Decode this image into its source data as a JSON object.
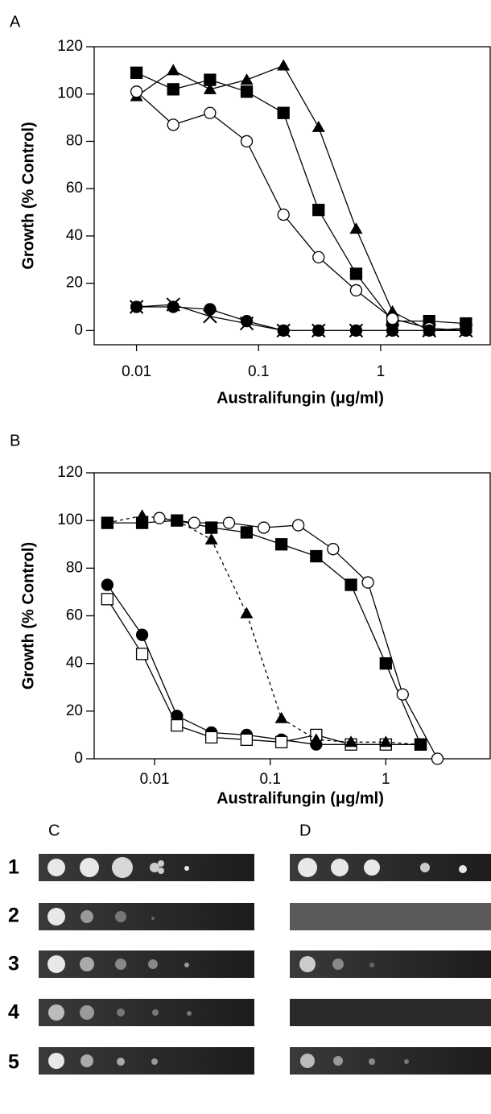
{
  "chart_data": [
    {
      "type": "line",
      "panel": "A",
      "x_label": "Australifungin (μg/ml)",
      "y_label": "Growth (% Control)",
      "x_scale": "log",
      "xlim": [
        0.0045,
        7.9
      ],
      "xticks": [
        0.01,
        0.1,
        1
      ],
      "ylim": [
        -6,
        120
      ],
      "yticks": [
        0,
        20,
        40,
        60,
        80,
        100,
        120
      ],
      "x": [
        0.01,
        0.02,
        0.04,
        0.08,
        0.16,
        0.31,
        0.63,
        1.25,
        2.5,
        5
      ],
      "series": [
        {
          "color": "#000000",
          "marker": "square",
          "dash": false,
          "values": [
            109,
            102,
            106,
            101,
            92,
            51,
            24,
            4,
            4,
            3
          ]
        },
        {
          "color": "#000000",
          "marker": "triangle",
          "dash": false,
          "values": [
            99,
            110,
            102,
            106,
            112,
            86,
            43,
            8,
            0,
            1
          ]
        },
        {
          "color": "#000000",
          "marker": "circle-open",
          "dash": false,
          "values": [
            101,
            87,
            92,
            80,
            49,
            31,
            17,
            5,
            1,
            0
          ]
        },
        {
          "color": "#000000",
          "marker": "circle",
          "dash": false,
          "values": [
            10,
            10,
            9,
            4,
            0,
            0,
            0,
            0,
            0,
            0
          ]
        },
        {
          "color": "#000000",
          "marker": "x",
          "dash": false,
          "values": [
            10,
            11,
            6,
            3,
            0,
            0,
            0,
            0,
            0,
            0
          ]
        }
      ]
    },
    {
      "type": "line",
      "panel": "B",
      "x_label": "Australifungin (μg/ml)",
      "y_label": "Growth (% Control)",
      "x_scale": "log",
      "xlim": [
        0.003,
        8
      ],
      "xticks": [
        0.01,
        0.1,
        1
      ],
      "ylim": [
        0,
        120
      ],
      "yticks": [
        0,
        20,
        40,
        60,
        80,
        100,
        120
      ],
      "x": [
        0.0039,
        0.0078,
        0.0156,
        0.031,
        0.0625,
        0.125,
        0.25,
        0.5,
        1,
        2
      ],
      "series": [
        {
          "color": "#000000",
          "marker": "circle",
          "dash": false,
          "values": [
            73,
            52,
            18,
            11,
            10,
            8,
            6,
            6,
            6,
            null
          ]
        },
        {
          "color": "#000000",
          "marker": "square-open",
          "dash": false,
          "values": [
            67,
            44,
            14,
            9,
            8,
            7,
            10,
            6,
            6,
            6
          ]
        },
        {
          "color": "#000000",
          "marker": "square",
          "dash": false,
          "values": [
            99,
            99,
            100,
            97,
            95,
            90,
            85,
            73,
            40,
            6
          ]
        },
        {
          "color": "#000000",
          "marker": "triangle",
          "dash": true,
          "values": [
            99,
            102,
            100,
            92,
            61,
            17,
            8,
            7,
            7,
            6
          ]
        },
        {
          "color": "#000000",
          "marker": "circle-open",
          "dash": false,
          "x": [
            0.011,
            0.022,
            0.044,
            0.088,
            0.175,
            0.35,
            0.7,
            1.4,
            2.8
          ],
          "values": [
            101,
            99,
            99,
            97,
            98,
            88,
            74,
            27,
            0
          ]
        }
      ]
    }
  ],
  "spot_assay": {
    "panel_labels": [
      "C",
      "D"
    ],
    "row_labels": [
      "1",
      "2",
      "3",
      "4",
      "5"
    ]
  }
}
